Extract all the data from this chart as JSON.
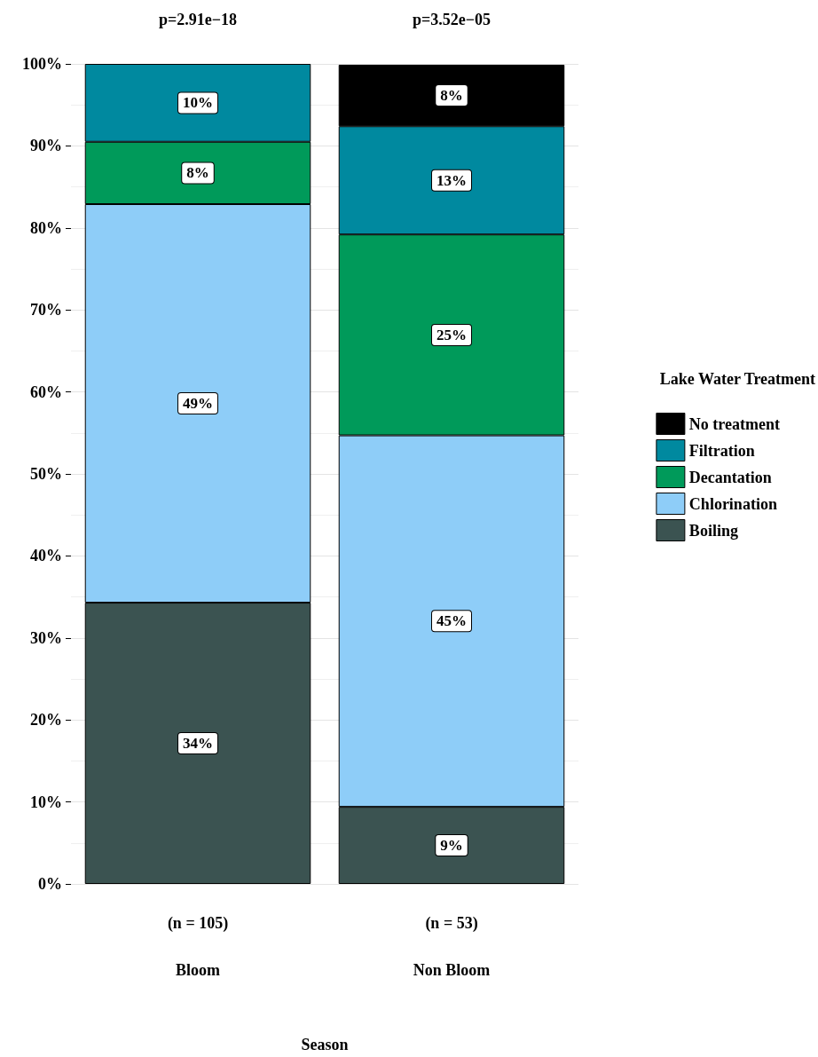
{
  "chart_data": {
    "type": "bar",
    "stacked": true,
    "xlabel": "Season",
    "legend_title": "Lake Water Treatment",
    "legend": "right",
    "grid": "y",
    "categories": [
      "Bloom",
      "Non Bloom"
    ],
    "series": [
      {
        "name": "Boiling",
        "color": "#3b5351",
        "values": [
          34.3,
          9.4
        ],
        "value_labels": [
          "34%",
          "9%"
        ]
      },
      {
        "name": "Chlorination",
        "color": "#8ecdf8",
        "values": [
          48.6,
          45.3
        ],
        "value_labels": [
          "49%",
          "45%"
        ]
      },
      {
        "name": "Decantation",
        "color": "#009a5a",
        "values": [
          7.6,
          24.5
        ],
        "value_labels": [
          "8%",
          "25%"
        ]
      },
      {
        "name": "Filtration",
        "color": "#00899f",
        "values": [
          9.5,
          13.2
        ],
        "value_labels": [
          "10%",
          "13%"
        ]
      },
      {
        "name": "No treatment",
        "color": "#000000",
        "values": [
          null,
          7.5
        ],
        "value_labels": [
          null,
          "8%"
        ]
      }
    ],
    "ylim": [
      0,
      100
    ],
    "yticks": [
      {
        "value": 0,
        "label": "0%"
      },
      {
        "value": 10,
        "label": "10%"
      },
      {
        "value": 20,
        "label": "20%"
      },
      {
        "value": 30,
        "label": "30%"
      },
      {
        "value": 40,
        "label": "40%"
      },
      {
        "value": 50,
        "label": "50%"
      },
      {
        "value": 60,
        "label": "60%"
      },
      {
        "value": 70,
        "label": "70%"
      },
      {
        "value": 80,
        "label": "80%"
      },
      {
        "value": 90,
        "label": "90%"
      },
      {
        "value": 100,
        "label": "100%"
      }
    ],
    "annotations": [
      "p=2.91e−18",
      "p=3.52e−05",
      "(n = 105)",
      "(n = 53)"
    ]
  }
}
